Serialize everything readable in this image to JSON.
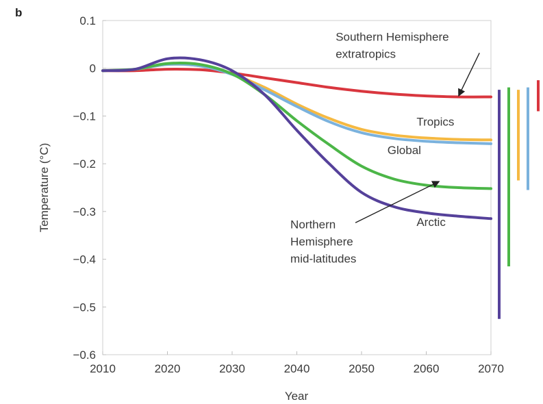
{
  "chart_data": {
    "type": "line",
    "panel_label": "b",
    "xlabel": "Year",
    "ylabel": "Temperature (°C)",
    "xlim": [
      2010,
      2070
    ],
    "ylim": [
      -0.6,
      0.1
    ],
    "xticks": [
      "2010",
      "2020",
      "2030",
      "2040",
      "2050",
      "2060",
      "2070"
    ],
    "yticks": [
      "0.1",
      "0",
      "−0.1",
      "−0.2",
      "−0.3",
      "−0.4",
      "−0.5",
      "−0.6"
    ],
    "grid": false,
    "series": [
      {
        "name": "Southern Hemisphere extratropics",
        "color": "#d9363e",
        "x": [
          2010,
          2015,
          2020,
          2025,
          2030,
          2035,
          2040,
          2045,
          2050,
          2055,
          2060,
          2065,
          2070
        ],
        "y": [
          -0.005,
          -0.005,
          -0.002,
          -0.003,
          -0.01,
          -0.02,
          -0.03,
          -0.04,
          -0.048,
          -0.054,
          -0.058,
          -0.06,
          -0.06
        ]
      },
      {
        "name": "Tropics",
        "color": "#f5b942",
        "x": [
          2010,
          2015,
          2020,
          2025,
          2030,
          2035,
          2040,
          2045,
          2050,
          2055,
          2060,
          2065,
          2070
        ],
        "y": [
          -0.005,
          -0.002,
          0.008,
          0.005,
          -0.012,
          -0.04,
          -0.075,
          -0.105,
          -0.128,
          -0.14,
          -0.146,
          -0.149,
          -0.15
        ]
      },
      {
        "name": "Global",
        "color": "#7bb2dd",
        "x": [
          2010,
          2015,
          2020,
          2025,
          2030,
          2035,
          2040,
          2045,
          2050,
          2055,
          2060,
          2065,
          2070
        ],
        "y": [
          -0.005,
          -0.002,
          0.008,
          0.005,
          -0.013,
          -0.045,
          -0.08,
          -0.112,
          -0.135,
          -0.147,
          -0.153,
          -0.156,
          -0.158
        ]
      },
      {
        "name": "Northern Hemisphere mid-latitudes",
        "color": "#4cb648",
        "x": [
          2010,
          2015,
          2020,
          2025,
          2030,
          2035,
          2040,
          2045,
          2050,
          2055,
          2060,
          2065,
          2070
        ],
        "y": [
          -0.005,
          -0.002,
          0.01,
          0.008,
          -0.012,
          -0.055,
          -0.11,
          -0.16,
          -0.205,
          -0.232,
          -0.245,
          -0.25,
          -0.252
        ]
      },
      {
        "name": "Arctic",
        "color": "#55419a",
        "x": [
          2010,
          2015,
          2020,
          2025,
          2030,
          2035,
          2040,
          2045,
          2050,
          2055,
          2060,
          2065,
          2070
        ],
        "y": [
          -0.005,
          -0.002,
          0.02,
          0.018,
          -0.005,
          -0.055,
          -0.13,
          -0.2,
          -0.26,
          -0.29,
          -0.303,
          -0.31,
          -0.315
        ]
      }
    ],
    "ranges": [
      {
        "series": "Arctic",
        "color": "#55419a",
        "low": -0.525,
        "high": -0.045
      },
      {
        "series": "Northern Hemisphere mid-latitudes",
        "color": "#4cb648",
        "low": -0.415,
        "high": -0.04
      },
      {
        "series": "Tropics",
        "color": "#f5b942",
        "low": -0.235,
        "high": -0.045
      },
      {
        "series": "Global",
        "color": "#7bb2dd",
        "low": -0.255,
        "high": -0.04
      },
      {
        "series": "Southern Hemisphere extratropics",
        "color": "#d9363e",
        "low": -0.09,
        "high": -0.025
      }
    ],
    "annotations": [
      {
        "lines": [
          "Southern Hemisphere",
          "extratropics"
        ],
        "x": 2046,
        "y": 0.058,
        "align": "start",
        "arrow_to": {
          "x": 2065,
          "y": -0.058
        }
      },
      {
        "lines": [
          "Tropics"
        ],
        "x": 2058.5,
        "y": -0.12,
        "align": "start"
      },
      {
        "lines": [
          "Global"
        ],
        "x": 2054,
        "y": -0.18,
        "align": "start"
      },
      {
        "lines": [
          "Arctic"
        ],
        "x": 2058.5,
        "y": -0.33,
        "align": "start"
      },
      {
        "lines": [
          "Northern",
          "Hemisphere",
          "mid-latitudes"
        ],
        "x": 2039,
        "y": -0.335,
        "align": "start",
        "arrow_to": {
          "x": 2062,
          "y": -0.237
        }
      }
    ]
  }
}
